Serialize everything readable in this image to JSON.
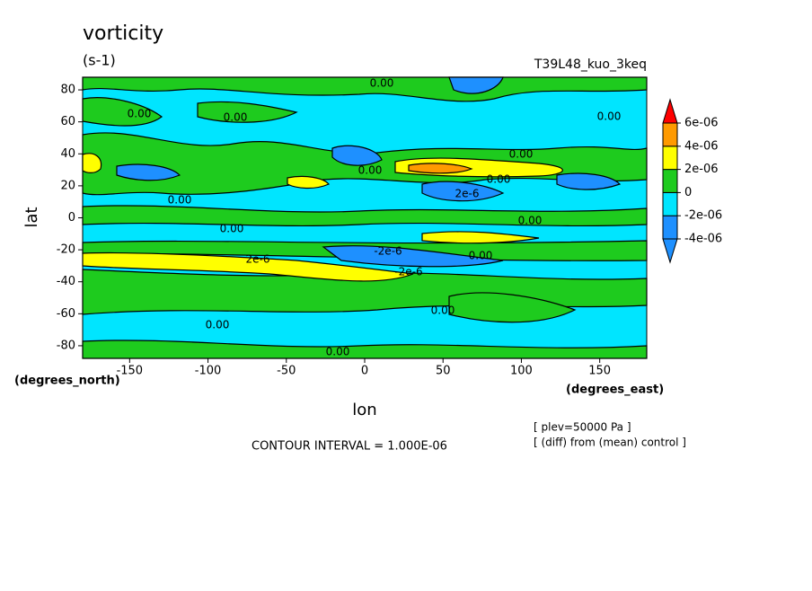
{
  "chart_data": {
    "type": "contour",
    "title": "vorticity",
    "units": "(s-1)",
    "subtitle": "T39L48_kuo_3keq",
    "x_label": "lon",
    "y_label": "lat",
    "x_units": "(degrees_east)",
    "y_units": "(degrees_north)",
    "xlim": [
      -180,
      180
    ],
    "ylim": [
      -87.9,
      87.9
    ],
    "xticks": [
      -150,
      -100,
      -50,
      0,
      50,
      100,
      150
    ],
    "yticks": [
      -80,
      -60,
      -40,
      -20,
      0,
      20,
      40,
      60,
      80
    ],
    "colorbar": {
      "ticks": [
        {
          "value": -4e-06,
          "label": "-4e-06"
        },
        {
          "value": -2e-06,
          "label": "-2e-06"
        },
        0,
        {
          "value": 2e-06,
          "label": "2e-06"
        },
        {
          "value": 4e-06,
          "label": "4e-06"
        },
        {
          "value": 6e-06,
          "label": "6e-06"
        }
      ],
      "colors": [
        "#1e90ff",
        "#1e90ff",
        "#00e5ff",
        "#1ecb1e",
        "#ffff00",
        "#ff9a00",
        "#ff0000"
      ]
    },
    "contour_labels": [
      "0.00",
      "0.00",
      "0.00",
      "0.00",
      "0.00",
      "0.00",
      "0.00",
      "0.00",
      "0.00",
      "0.00",
      "0.00",
      "-2e-6",
      "2e-6",
      "-2e-6",
      "2e-6",
      "0.00",
      "0.00",
      "0.00"
    ],
    "notes": [
      "CONTOUR INTERVAL = 1.000E-06",
      "[ plev=50000 Pa ]",
      "[ (diff) from (mean) control ]"
    ]
  }
}
